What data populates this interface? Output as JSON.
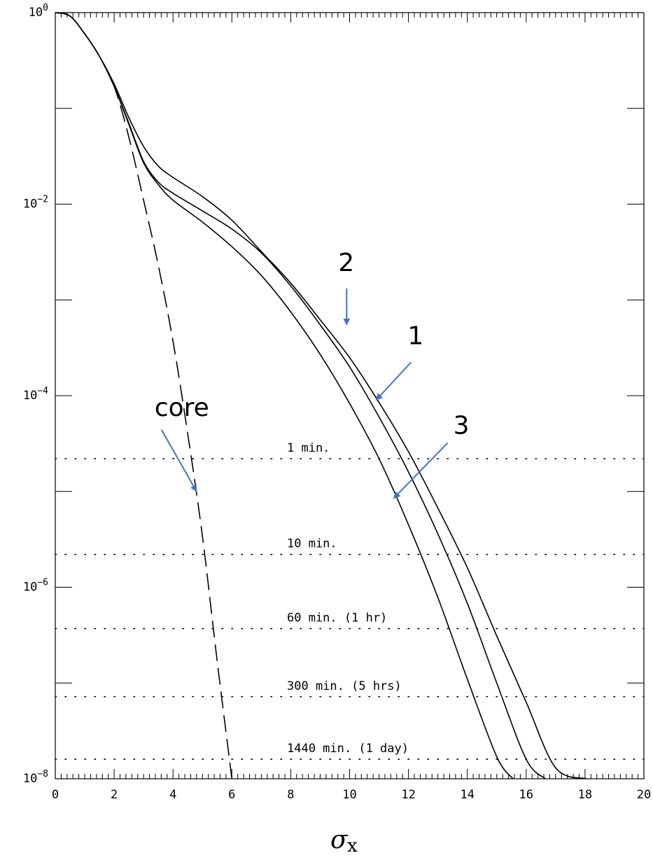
{
  "chart_data": {
    "type": "line",
    "xlabel": "σ",
    "xlabel_subscript": "x",
    "ylabel": "",
    "xlim": [
      0,
      20
    ],
    "ylim": [
      1e-08,
      1
    ],
    "y_scale": "log",
    "grid": false,
    "x_ticks": [
      0,
      2,
      4,
      6,
      8,
      10,
      12,
      14,
      16,
      18,
      20
    ],
    "y_ticks": [
      {
        "value": 1,
        "base": "10",
        "exp": "0"
      },
      {
        "value": 0.01,
        "base": "10",
        "exp": "−2"
      },
      {
        "value": 0.0001,
        "base": "10",
        "exp": "−4"
      },
      {
        "value": 1e-06,
        "base": "10",
        "exp": "−6"
      },
      {
        "value": 1e-08,
        "base": "10",
        "exp": "−8"
      }
    ],
    "series": [
      {
        "name": "core",
        "style": "dashed",
        "x": [
          0,
          0.5,
          1,
          1.5,
          2,
          2.5,
          3,
          3.5,
          4,
          4.5,
          5,
          5.5,
          6
        ],
        "y": [
          1,
          0.92,
          0.6,
          0.35,
          0.17,
          0.05,
          0.011,
          0.0023,
          0.00037,
          4e-05,
          3.4e-06,
          1.7e-07,
          1e-08
        ]
      },
      {
        "name": "1",
        "style": "solid",
        "x": [
          0,
          0.5,
          1,
          1.5,
          2,
          2.5,
          3,
          3.5,
          4,
          5,
          6,
          7,
          8,
          9,
          10,
          11,
          12,
          13,
          14,
          15,
          16,
          16.65
        ],
        "y": [
          1,
          0.92,
          0.6,
          0.35,
          0.17,
          0.07,
          0.028,
          0.017,
          0.013,
          0.0085,
          0.0055,
          0.0031,
          0.0014,
          0.00055,
          0.0002,
          6e-05,
          1.6e-05,
          3.6e-06,
          6.8e-07,
          1e-07,
          1.6e-08,
          1e-08
        ]
      },
      {
        "name": "2",
        "style": "solid",
        "x": [
          0,
          0.5,
          1,
          1.5,
          2,
          2.5,
          3,
          3.5,
          4,
          5,
          6,
          7,
          8,
          9,
          10,
          11,
          12,
          13,
          14,
          15,
          16,
          17,
          18.05
        ],
        "y": [
          1,
          0.92,
          0.6,
          0.35,
          0.18,
          0.08,
          0.04,
          0.025,
          0.019,
          0.012,
          0.0068,
          0.0032,
          0.0015,
          0.00062,
          0.00025,
          8.5e-05,
          2.6e-05,
          6.7e-06,
          1.6e-06,
          3.1e-07,
          6.3e-08,
          1.3e-08,
          1e-08
        ]
      },
      {
        "name": "3",
        "style": "solid",
        "x": [
          0,
          0.5,
          1,
          1.5,
          2,
          2.5,
          3,
          3.5,
          4,
          5,
          6,
          7,
          8,
          9,
          10,
          11,
          12,
          13,
          14,
          15,
          15.55
        ],
        "y": [
          1,
          0.92,
          0.6,
          0.35,
          0.17,
          0.068,
          0.027,
          0.016,
          0.011,
          0.0065,
          0.0036,
          0.0018,
          0.00075,
          0.00027,
          8.3e-05,
          2.2e-05,
          4.5e-06,
          7.8e-07,
          1.1e-07,
          1.7e-08,
          1e-08
        ]
      }
    ],
    "reference_lines": [
      {
        "label": "1 min.",
        "y": 2.2e-05
      },
      {
        "label": "10 min.",
        "y": 2.2e-06
      },
      {
        "label": "60 min. (1 hr)",
        "y": 3.7e-07
      },
      {
        "label": "300 min. (5 hrs)",
        "y": 7.2e-08
      },
      {
        "label": "1440 min. (1 day)",
        "y": 1.6e-08
      }
    ],
    "annotations": [
      {
        "text": "core",
        "arrow_to_series": "core",
        "at_x": 4.8,
        "at_y": 1e-05
      },
      {
        "text": "2",
        "arrow_to_series": "2",
        "at_x": 9.9,
        "at_y": 0.00055
      },
      {
        "text": "1",
        "arrow_to_series": "1",
        "at_x": 10.9,
        "at_y": 9e-05
      },
      {
        "text": "3",
        "arrow_to_series": "3",
        "at_x": 11.5,
        "at_y": 8.5e-06
      }
    ],
    "colors": {
      "axis": "#000000",
      "curve": "#000000",
      "arrow": "#4472C4"
    }
  }
}
